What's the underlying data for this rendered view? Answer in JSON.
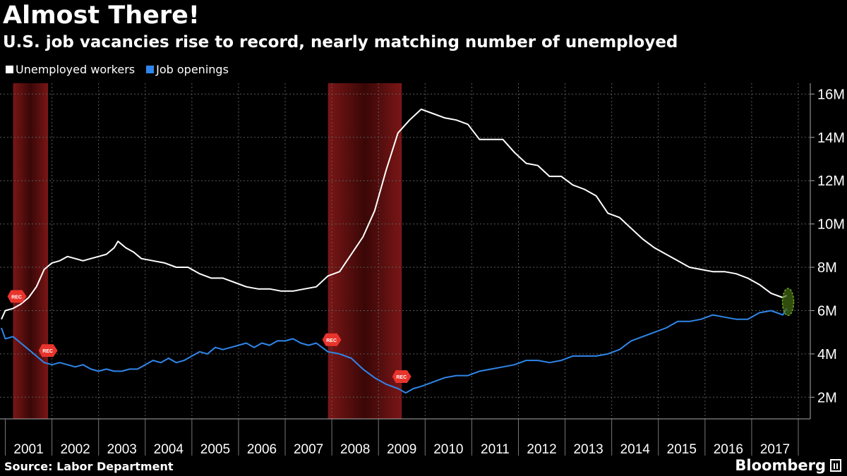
{
  "title": "Almost There!",
  "subtitle": "U.S. job vacancies rise to record, nearly matching number of unemployed",
  "source": "Source: Labor Department",
  "brand": "Bloomberg",
  "colors": {
    "unemployed": "#ffffff",
    "openings": "#2f86ea",
    "recession": "#6b1212",
    "rec_marker": "#e8342c",
    "highlight": "#6aa626"
  },
  "chart_data": {
    "type": "line",
    "title": "Almost There!",
    "subtitle": "U.S. job vacancies rise to record, nearly matching number of unemployed",
    "x_axis": {
      "tick_labels": [
        "2001",
        "2002",
        "2003",
        "2004",
        "2005",
        "2006",
        "2007",
        "2008",
        "2009",
        "2010",
        "2011",
        "2012",
        "2013",
        "2014",
        "2015",
        "2016",
        "2017"
      ],
      "range": [
        "2000-12",
        "2017-10"
      ]
    },
    "y_axis": {
      "side": "right",
      "tick_labels": [
        "2M",
        "4M",
        "6M",
        "8M",
        "10M",
        "12M",
        "14M",
        "16M"
      ],
      "range": [
        1,
        16.5
      ],
      "unit": "millions"
    },
    "grid": true,
    "legend": {
      "placement": "top-left",
      "entries": [
        "Unemployed workers",
        "Job openings"
      ]
    },
    "recessions": [
      {
        "start": "2001-03",
        "end": "2001-11",
        "label": "REC"
      },
      {
        "start": "2007-12",
        "end": "2009-06",
        "label": "REC"
      }
    ],
    "series": [
      {
        "name": "Unemployed workers",
        "color": "#ffffff",
        "points": [
          [
            "2000-12",
            5.6
          ],
          [
            "2001-01",
            6.0
          ],
          [
            "2001-03",
            6.1
          ],
          [
            "2001-05",
            6.3
          ],
          [
            "2001-07",
            6.6
          ],
          [
            "2001-09",
            7.1
          ],
          [
            "2001-11",
            7.9
          ],
          [
            "2002-01",
            8.2
          ],
          [
            "2002-03",
            8.3
          ],
          [
            "2002-05",
            8.5
          ],
          [
            "2002-07",
            8.4
          ],
          [
            "2002-09",
            8.3
          ],
          [
            "2002-11",
            8.4
          ],
          [
            "2003-01",
            8.5
          ],
          [
            "2003-03",
            8.6
          ],
          [
            "2003-05",
            8.9
          ],
          [
            "2003-06",
            9.2
          ],
          [
            "2003-08",
            8.9
          ],
          [
            "2003-10",
            8.7
          ],
          [
            "2003-12",
            8.4
          ],
          [
            "2004-03",
            8.3
          ],
          [
            "2004-06",
            8.2
          ],
          [
            "2004-09",
            8.0
          ],
          [
            "2004-12",
            8.0
          ],
          [
            "2005-03",
            7.7
          ],
          [
            "2005-06",
            7.5
          ],
          [
            "2005-09",
            7.5
          ],
          [
            "2005-12",
            7.3
          ],
          [
            "2006-03",
            7.1
          ],
          [
            "2006-06",
            7.0
          ],
          [
            "2006-09",
            7.0
          ],
          [
            "2006-12",
            6.9
          ],
          [
            "2007-03",
            6.9
          ],
          [
            "2007-06",
            7.0
          ],
          [
            "2007-09",
            7.1
          ],
          [
            "2007-12",
            7.6
          ],
          [
            "2008-03",
            7.8
          ],
          [
            "2008-06",
            8.6
          ],
          [
            "2008-09",
            9.4
          ],
          [
            "2008-12",
            10.6
          ],
          [
            "2009-03",
            12.5
          ],
          [
            "2009-06",
            14.2
          ],
          [
            "2009-09",
            14.8
          ],
          [
            "2009-12",
            15.3
          ],
          [
            "2010-03",
            15.1
          ],
          [
            "2010-06",
            14.9
          ],
          [
            "2010-09",
            14.8
          ],
          [
            "2010-12",
            14.6
          ],
          [
            "2011-03",
            13.9
          ],
          [
            "2011-06",
            13.9
          ],
          [
            "2011-09",
            13.9
          ],
          [
            "2011-12",
            13.3
          ],
          [
            "2012-03",
            12.8
          ],
          [
            "2012-06",
            12.7
          ],
          [
            "2012-09",
            12.2
          ],
          [
            "2012-12",
            12.2
          ],
          [
            "2013-03",
            11.8
          ],
          [
            "2013-06",
            11.6
          ],
          [
            "2013-09",
            11.3
          ],
          [
            "2013-12",
            10.5
          ],
          [
            "2014-03",
            10.3
          ],
          [
            "2014-06",
            9.8
          ],
          [
            "2014-09",
            9.3
          ],
          [
            "2014-12",
            8.9
          ],
          [
            "2015-03",
            8.6
          ],
          [
            "2015-06",
            8.3
          ],
          [
            "2015-09",
            8.0
          ],
          [
            "2015-12",
            7.9
          ],
          [
            "2016-03",
            7.8
          ],
          [
            "2016-06",
            7.8
          ],
          [
            "2016-09",
            7.7
          ],
          [
            "2016-12",
            7.5
          ],
          [
            "2017-03",
            7.2
          ],
          [
            "2017-06",
            6.8
          ],
          [
            "2017-09",
            6.6
          ],
          [
            "2017-10",
            6.7
          ]
        ]
      },
      {
        "name": "Job openings",
        "color": "#2f86ea",
        "points": [
          [
            "2000-12",
            5.2
          ],
          [
            "2001-01",
            4.7
          ],
          [
            "2001-03",
            4.8
          ],
          [
            "2001-05",
            4.5
          ],
          [
            "2001-07",
            4.2
          ],
          [
            "2001-09",
            3.9
          ],
          [
            "2001-11",
            3.6
          ],
          [
            "2002-01",
            3.5
          ],
          [
            "2002-03",
            3.6
          ],
          [
            "2002-05",
            3.5
          ],
          [
            "2002-07",
            3.4
          ],
          [
            "2002-09",
            3.5
          ],
          [
            "2002-11",
            3.3
          ],
          [
            "2003-01",
            3.2
          ],
          [
            "2003-03",
            3.3
          ],
          [
            "2003-05",
            3.2
          ],
          [
            "2003-07",
            3.2
          ],
          [
            "2003-09",
            3.3
          ],
          [
            "2003-11",
            3.3
          ],
          [
            "2004-01",
            3.5
          ],
          [
            "2004-03",
            3.7
          ],
          [
            "2004-05",
            3.6
          ],
          [
            "2004-07",
            3.8
          ],
          [
            "2004-09",
            3.6
          ],
          [
            "2004-11",
            3.7
          ],
          [
            "2005-01",
            3.9
          ],
          [
            "2005-03",
            4.1
          ],
          [
            "2005-05",
            4.0
          ],
          [
            "2005-07",
            4.3
          ],
          [
            "2005-09",
            4.2
          ],
          [
            "2005-11",
            4.3
          ],
          [
            "2006-01",
            4.4
          ],
          [
            "2006-03",
            4.5
          ],
          [
            "2006-05",
            4.3
          ],
          [
            "2006-07",
            4.5
          ],
          [
            "2006-09",
            4.4
          ],
          [
            "2006-11",
            4.6
          ],
          [
            "2007-01",
            4.6
          ],
          [
            "2007-03",
            4.7
          ],
          [
            "2007-05",
            4.5
          ],
          [
            "2007-07",
            4.4
          ],
          [
            "2007-09",
            4.5
          ],
          [
            "2007-12",
            4.1
          ],
          [
            "2008-03",
            4.0
          ],
          [
            "2008-06",
            3.8
          ],
          [
            "2008-09",
            3.3
          ],
          [
            "2008-12",
            2.9
          ],
          [
            "2009-03",
            2.6
          ],
          [
            "2009-06",
            2.4
          ],
          [
            "2009-08",
            2.2
          ],
          [
            "2009-10",
            2.4
          ],
          [
            "2009-12",
            2.5
          ],
          [
            "2010-03",
            2.7
          ],
          [
            "2010-06",
            2.9
          ],
          [
            "2010-09",
            3.0
          ],
          [
            "2010-12",
            3.0
          ],
          [
            "2011-03",
            3.2
          ],
          [
            "2011-06",
            3.3
          ],
          [
            "2011-09",
            3.4
          ],
          [
            "2011-12",
            3.5
          ],
          [
            "2012-03",
            3.7
          ],
          [
            "2012-06",
            3.7
          ],
          [
            "2012-09",
            3.6
          ],
          [
            "2012-12",
            3.7
          ],
          [
            "2013-03",
            3.9
          ],
          [
            "2013-06",
            3.9
          ],
          [
            "2013-09",
            3.9
          ],
          [
            "2013-12",
            4.0
          ],
          [
            "2014-03",
            4.2
          ],
          [
            "2014-06",
            4.6
          ],
          [
            "2014-09",
            4.8
          ],
          [
            "2014-12",
            5.0
          ],
          [
            "2015-03",
            5.2
          ],
          [
            "2015-06",
            5.5
          ],
          [
            "2015-09",
            5.5
          ],
          [
            "2015-12",
            5.6
          ],
          [
            "2016-03",
            5.8
          ],
          [
            "2016-06",
            5.7
          ],
          [
            "2016-09",
            5.6
          ],
          [
            "2016-12",
            5.6
          ],
          [
            "2017-03",
            5.9
          ],
          [
            "2017-06",
            6.0
          ],
          [
            "2017-09",
            5.8
          ],
          [
            "2017-10",
            6.1
          ]
        ]
      }
    ],
    "annotations": [
      {
        "type": "rec-marker",
        "series": "Unemployed workers",
        "date": "2001-03",
        "label": "REC"
      },
      {
        "type": "rec-marker",
        "series": "Job openings",
        "date": "2001-11",
        "label": "REC"
      },
      {
        "type": "rec-marker",
        "series": "Job openings",
        "date": "2007-12",
        "label": "REC"
      },
      {
        "type": "rec-marker",
        "series": "Job openings",
        "date": "2009-06",
        "label": "REC"
      },
      {
        "type": "highlight-ellipse",
        "date": "2017-10"
      }
    ]
  }
}
